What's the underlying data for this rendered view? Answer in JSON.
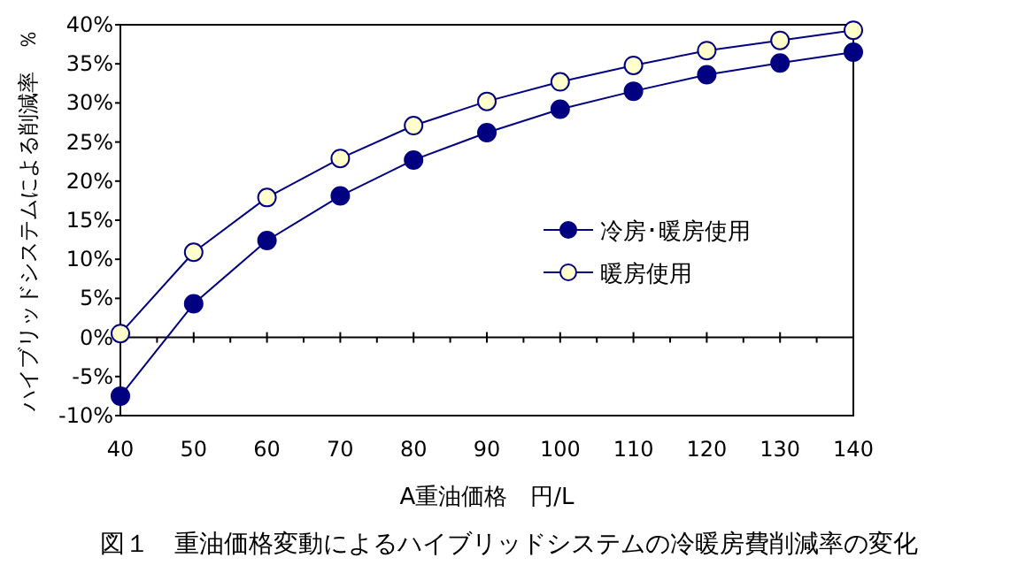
{
  "chart_data": {
    "type": "line",
    "title": "図１　重油価格変動によるハイブリッドシステムの冷暖房費削減率の変化",
    "xlabel": "A重油価格　円/L",
    "ylabel": "ハイブリッドシステムによる削減率　％",
    "x": [
      40,
      50,
      60,
      70,
      80,
      90,
      100,
      110,
      120,
      130,
      140
    ],
    "series": [
      {
        "name": "冷房･暖房使用",
        "color": "#000080",
        "values": [
          -7.5,
          4.3,
          12.4,
          18.1,
          22.7,
          26.2,
          29.2,
          31.5,
          33.6,
          35.1,
          36.5
        ]
      },
      {
        "name": "暖房使用",
        "color": "#ffffcc",
        "values": [
          0.5,
          10.9,
          17.9,
          22.9,
          27.1,
          30.2,
          32.7,
          34.8,
          36.7,
          38.0,
          39.3
        ]
      }
    ],
    "xlim": [
      40,
      140
    ],
    "xticks": [
      40,
      50,
      60,
      70,
      80,
      90,
      100,
      110,
      120,
      130,
      140
    ],
    "ylim": [
      -10,
      40
    ],
    "yticks": [
      {
        "value": -10,
        "label": "-10%"
      },
      {
        "value": -5,
        "label": "-5%"
      },
      {
        "value": 0,
        "label": "0%"
      },
      {
        "value": 5,
        "label": "5%"
      },
      {
        "value": 10,
        "label": "10%"
      },
      {
        "value": 15,
        "label": "15%"
      },
      {
        "value": 20,
        "label": "20%"
      },
      {
        "value": 25,
        "label": "25%"
      },
      {
        "value": 30,
        "label": "30%"
      },
      {
        "value": 35,
        "label": "35%"
      },
      {
        "value": 40,
        "label": "40%"
      }
    ],
    "legend": "right",
    "marker": "circle",
    "line_style": "solid"
  }
}
